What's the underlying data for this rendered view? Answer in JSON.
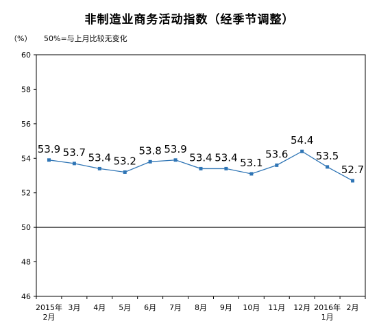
{
  "chart_data": {
    "type": "line",
    "title": "非制造业商务活动指数（经季节调整）",
    "unit": "（%）",
    "note": "50%=与上月比较无变化",
    "ylim": [
      46,
      60
    ],
    "y_ticks": [
      46,
      48,
      50,
      52,
      54,
      56,
      58,
      60
    ],
    "reference_line": 50,
    "grid": false,
    "categories": [
      [
        "2015年",
        "2月"
      ],
      [
        "3月"
      ],
      [
        "4月"
      ],
      [
        "5月"
      ],
      [
        "6月"
      ],
      [
        "7月"
      ],
      [
        "8月"
      ],
      [
        "9月"
      ],
      [
        "10月"
      ],
      [
        "11月"
      ],
      [
        "12月"
      ],
      [
        "2016年",
        "1月"
      ],
      [
        "2月"
      ]
    ],
    "series": [
      {
        "values": [
          53.9,
          53.7,
          53.4,
          53.2,
          53.8,
          53.9,
          53.4,
          53.4,
          53.1,
          53.6,
          54.4,
          53.5,
          52.7
        ],
        "value_labels": [
          "53.9",
          "53.7",
          "53.4",
          "53.2",
          "53.8",
          "53.9",
          "53.4",
          "53.4",
          "53.1",
          "53.6",
          "54.4",
          "53.5",
          "52.7"
        ],
        "color": "#2F75B5"
      }
    ]
  }
}
